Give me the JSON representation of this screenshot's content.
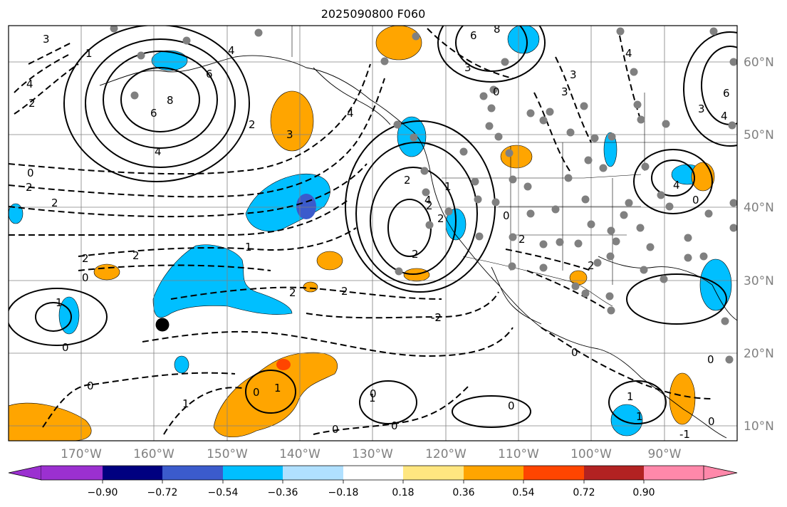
{
  "title": "2025090800 F060",
  "map": {
    "lat_labels": [
      "60°N",
      "50°N",
      "40°N",
      "30°N",
      "20°N",
      "10°N"
    ],
    "lon_labels": [
      "170°W",
      "160°W",
      "150°W",
      "140°W",
      "130°W",
      "120°W",
      "110°W",
      "100°W",
      "90°W"
    ],
    "contour_labels": [
      "3",
      "1",
      "2",
      "4",
      "6",
      "8",
      "6",
      "4",
      "2",
      "0",
      "2",
      "4",
      "2",
      "3",
      "4",
      "3",
      "3",
      "6",
      "8",
      "0",
      "3",
      "4",
      "4",
      "3",
      "6",
      "0",
      "2",
      "-2",
      "2",
      "1",
      "2",
      "2",
      "0",
      "2",
      "2",
      "1",
      "2",
      "2",
      "4",
      "0",
      "4",
      "2",
      "0",
      "2",
      "1",
      "-2",
      "0",
      "1",
      "0",
      "0",
      "1",
      "0",
      "0",
      "1",
      "0",
      "0",
      "0",
      "1",
      "1",
      "0",
      "-1"
    ],
    "colors": {
      "strong_neg": "#3b5bcc",
      "neg": "#00bfff",
      "pos": "#ffa500",
      "strong_pos": "#ff4500",
      "land_line": "#000000",
      "grid": "#808080",
      "station": "#808080"
    },
    "marker": "black-dot"
  },
  "colorbar": {
    "colors": [
      "#9b30d0",
      "#000080",
      "#3b5bcc",
      "#00bfff",
      "#b0e0ff",
      "#ffffff",
      "#ffe680",
      "#ffa500",
      "#ff4500",
      "#b22222",
      "#ff88aa"
    ],
    "ticks": [
      "−0.90",
      "−0.72",
      "−0.54",
      "−0.36",
      "−0.18",
      "0.18",
      "0.36",
      "0.54",
      "0.72",
      "0.90"
    ]
  }
}
